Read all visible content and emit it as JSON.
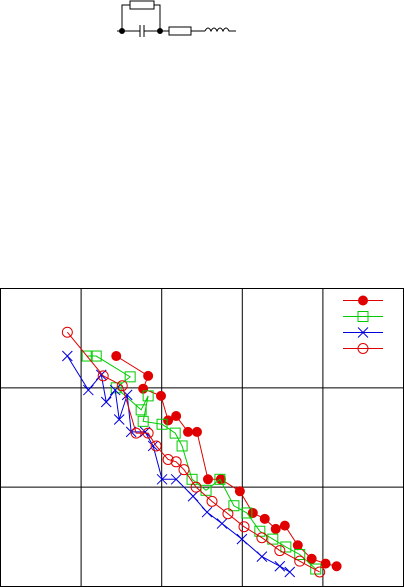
{
  "chart_data": {
    "type": "line",
    "log_x": true,
    "log_y": true,
    "grid": true,
    "legend": "upper right",
    "xlim": [
      1,
      100000
    ],
    "xticks": [
      10,
      100,
      1000,
      10000
    ],
    "ylim": [
      0.001,
      1
    ],
    "yticks": [
      0.01,
      0.1
    ],
    "series": [
      {
        "color": "#e00000",
        "marker": "filled-circle",
        "x": [
          27.3,
          67.9,
          58.9,
          98,
          120,
          151,
          212,
          274,
          375,
          543,
          933,
          1350,
          1900,
          2600,
          3370,
          4880,
          7260,
          10800,
          14800
        ],
        "values": [
          0.209,
          0.132,
          0.098,
          0.083,
          0.047,
          0.052,
          0.036,
          0.036,
          0.012,
          0.012,
          0.0091,
          0.0055,
          0.0048,
          0.0038,
          0.0041,
          0.0026,
          0.0019,
          0.0017,
          0.0016
        ]
      },
      {
        "color": "#00cc00",
        "marker": "open-square",
        "x": [
          11.9,
          15.4,
          40.6,
          27.3,
          55.6,
          67.9,
          58.9,
          101,
          147,
          179,
          238,
          355,
          528,
          787,
          1140,
          1650,
          2390,
          3470,
          5160,
          8150
        ],
        "values": [
          0.209,
          0.209,
          0.129,
          0.1,
          0.06,
          0.083,
          0.046,
          0.043,
          0.035,
          0.026,
          0.012,
          0.0093,
          0.012,
          0.0065,
          0.0055,
          0.0036,
          0.003,
          0.0025,
          0.0021,
          0.0015
        ]
      },
      {
        "color": "#0000dd",
        "marker": "cross",
        "x": [
          6.75,
          12.3,
          17.8,
          20.5,
          26.5,
          29.7,
          37.3,
          41.8,
          62.3,
          78.3,
          101,
          151,
          245,
          365,
          560,
          989,
          1750,
          2920,
          3880
        ],
        "values": [
          0.209,
          0.095,
          0.135,
          0.072,
          0.095,
          0.048,
          0.085,
          0.036,
          0.036,
          0.026,
          0.012,
          0.012,
          0.0081,
          0.0056,
          0.0043,
          0.003,
          0.002,
          0.0016,
          0.0014
        ]
      },
      {
        "color": "#e00000",
        "marker": "open-circle",
        "x": [
          6.75,
          18.8,
          32.4,
          48.2,
          67.9,
          85.3,
          120,
          151,
          189,
          267,
          421,
          663,
          1050,
          1750,
          2920,
          5160,
          9120
        ],
        "values": [
          0.363,
          0.132,
          0.105,
          0.035,
          0.035,
          0.026,
          0.019,
          0.018,
          0.015,
          0.01,
          0.0072,
          0.0054,
          0.004,
          0.0031,
          0.0023,
          0.0018,
          0.0014
        ]
      }
    ]
  }
}
